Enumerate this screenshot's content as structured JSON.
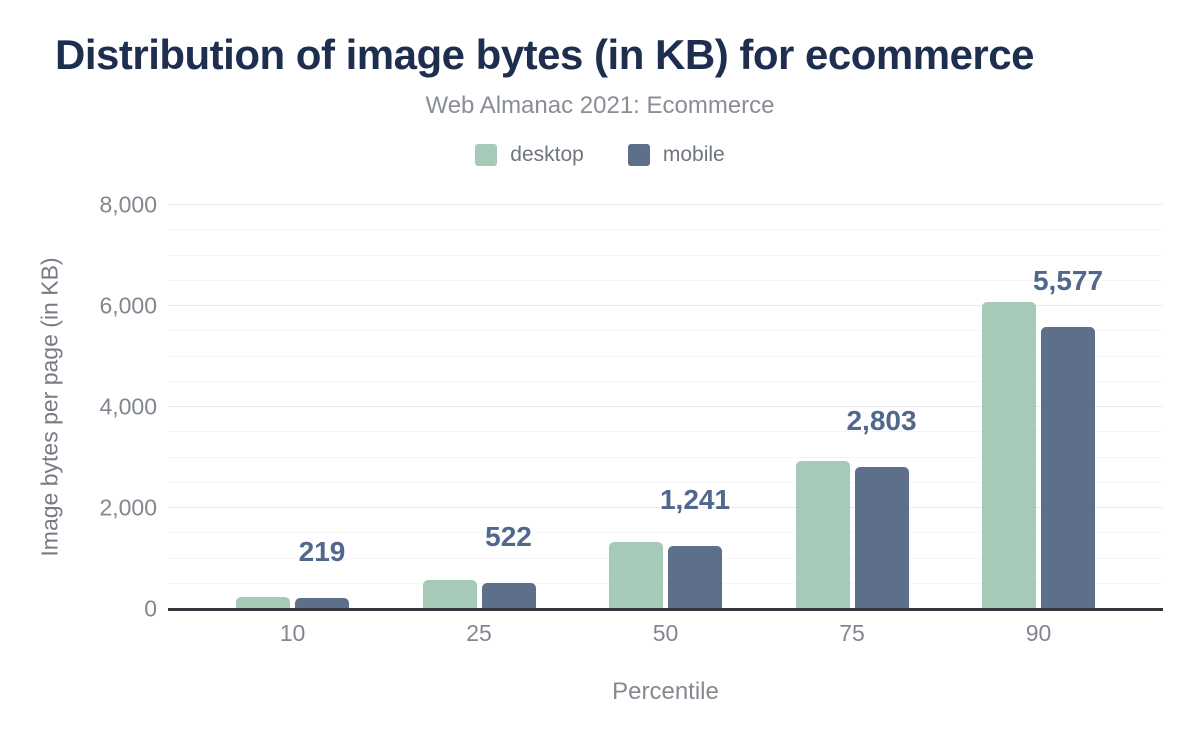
{
  "header": {
    "title": "Distribution of image bytes (in KB) for ecommerce",
    "subtitle": "Web Almanac 2021: Ecommerce"
  },
  "colors": {
    "title": "#1e2e4e",
    "subtitle": "#898e96",
    "desktop": "#a7cab8",
    "mobile": "#5e7089",
    "data_label": "#50678e",
    "axis_line": "#32363c",
    "tick_label": "#82878f"
  },
  "chart_data": {
    "type": "bar",
    "title": "Distribution of image bytes (in KB) for ecommerce",
    "subtitle": "Web Almanac 2021: Ecommerce",
    "xlabel": "Percentile",
    "ylabel": "Image bytes per page (in KB)",
    "categories": [
      "10",
      "25",
      "50",
      "75",
      "90"
    ],
    "series": [
      {
        "name": "desktop",
        "color": "#a7cab8",
        "values": [
          247,
          574,
          1328,
          2936,
          6075
        ]
      },
      {
        "name": "mobile",
        "color": "#5e7089",
        "values": [
          219,
          522,
          1241,
          2803,
          5577
        ]
      }
    ],
    "data_labels": {
      "on_series": "mobile",
      "values": [
        "219",
        "522",
        "1,241",
        "2,803",
        "5,577"
      ],
      "color": "#50678e"
    },
    "ylim": [
      0,
      8000
    ],
    "yticks": [
      {
        "value": 0,
        "label": "0"
      },
      {
        "value": 2000,
        "label": "2,000"
      },
      {
        "value": 4000,
        "label": "4,000"
      },
      {
        "value": 6000,
        "label": "6,000"
      },
      {
        "value": 8000,
        "label": "8,000"
      }
    ],
    "grid": {
      "major_step": 2000,
      "minor_step": 500,
      "grid_on": true
    },
    "legend_position": "top"
  }
}
